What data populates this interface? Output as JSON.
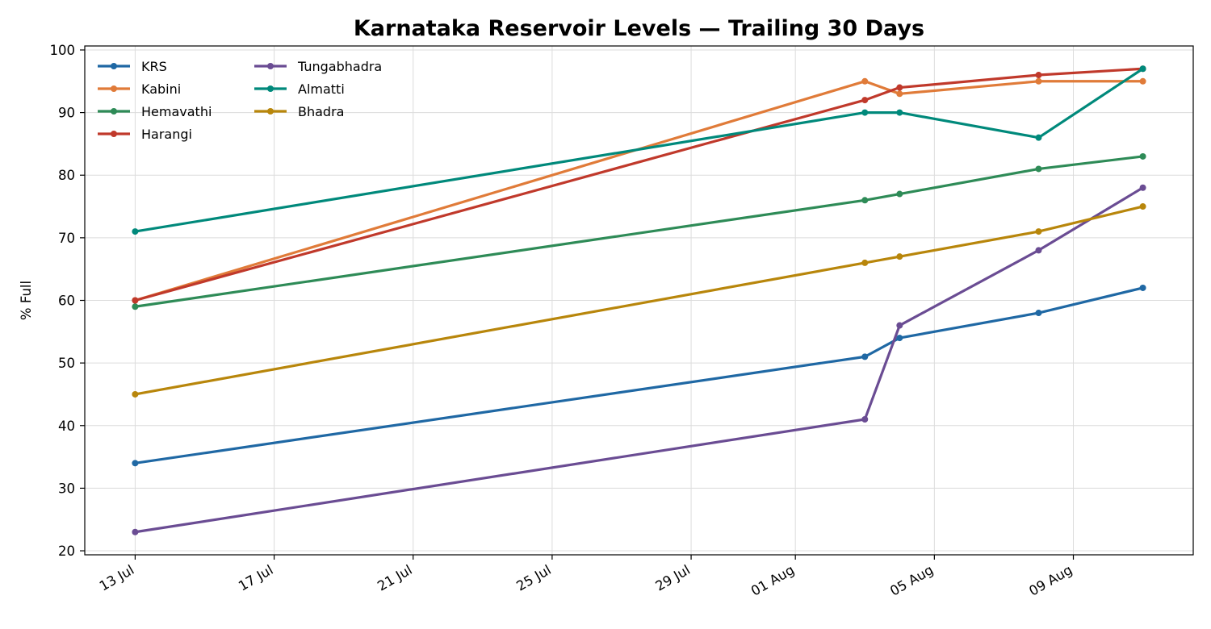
{
  "chart_data": {
    "type": "line",
    "title": "Karnataka Reservoir Levels — Trailing 30 Days",
    "xlabel": "",
    "ylabel": "% Full",
    "x": [
      "2024-07-13",
      "2024-08-03",
      "2024-08-04",
      "2024-08-08",
      "2024-08-11"
    ],
    "x_ticks": [
      "13 Jul",
      "17 Jul",
      "21 Jul",
      "25 Jul",
      "29 Jul",
      "01 Aug",
      "05 Aug",
      "09 Aug"
    ],
    "ylim": [
      20,
      100
    ],
    "y_ticks": [
      20,
      30,
      40,
      50,
      60,
      70,
      80,
      90,
      100
    ],
    "grid": true,
    "legend_placement": "top-left",
    "series": [
      {
        "name": "KRS",
        "color": "#1f68a4",
        "values": [
          34,
          51,
          54,
          58,
          62
        ]
      },
      {
        "name": "Kabini",
        "color": "#e07b39",
        "values": [
          60,
          95,
          93,
          95,
          95
        ]
      },
      {
        "name": "Hemavathi",
        "color": "#2e8b57",
        "values": [
          59,
          76,
          77,
          81,
          83
        ]
      },
      {
        "name": "Harangi",
        "color": "#c0392b",
        "values": [
          60,
          92,
          94,
          96,
          97
        ]
      },
      {
        "name": "Tungabhadra",
        "color": "#6a4c93",
        "values": [
          23,
          41,
          56,
          68,
          78
        ]
      },
      {
        "name": "Almatti",
        "color": "#00897b",
        "values": [
          71,
          90,
          90,
          86,
          97
        ]
      },
      {
        "name": "Bhadra",
        "color": "#b8860b",
        "values": [
          45,
          66,
          67,
          71,
          75
        ]
      }
    ]
  }
}
